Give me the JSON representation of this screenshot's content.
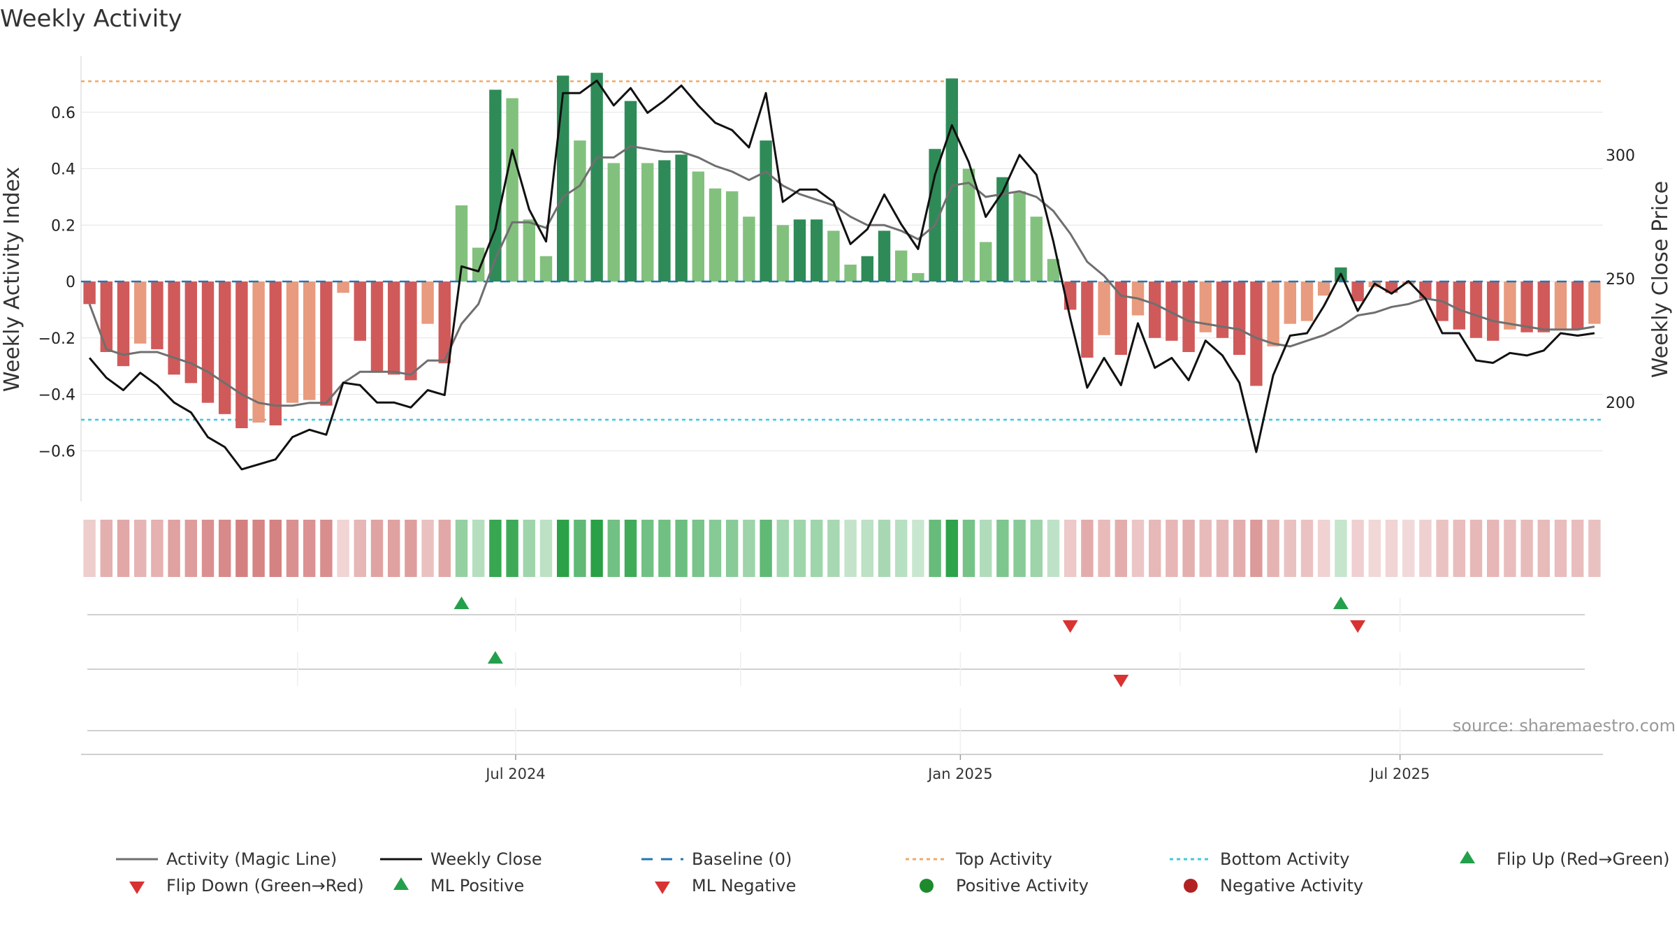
{
  "chart_data": {
    "type": "bar",
    "title": "Weekly Activity",
    "ylabel": "Weekly Activity Index",
    "y2label": "Weekly Close Price",
    "ylim": [
      -0.78,
      0.8
    ],
    "y2lim": [
      160,
      340
    ],
    "yticks": [
      -0.6,
      -0.4,
      -0.2,
      0,
      0.2,
      0.4,
      0.6
    ],
    "ytick_labels": [
      "−0.6",
      "−0.4",
      "−0.2",
      "0",
      "0.2",
      "0.4",
      "0.6"
    ],
    "y2ticks": [
      200,
      250,
      300
    ],
    "y2tick_labels": [
      "200",
      "250",
      "300"
    ],
    "date_ticks": [
      {
        "week": 25.2,
        "label": "Jul 2024"
      },
      {
        "week": 51.5,
        "label": "Jan 2025"
      },
      {
        "week": 77.5,
        "label": "Jul 2025"
      }
    ],
    "minor_date_ticks": [
      12.3,
      38.5,
      64.5
    ],
    "top_activity": 0.71,
    "bottom_activity": -0.49,
    "baseline": 0,
    "activity": [
      -0.08,
      -0.25,
      -0.3,
      -0.22,
      -0.24,
      -0.33,
      -0.36,
      -0.43,
      -0.47,
      -0.52,
      -0.5,
      -0.51,
      -0.43,
      -0.42,
      -0.44,
      -0.04,
      -0.21,
      -0.32,
      -0.33,
      -0.35,
      -0.15,
      -0.29,
      0.27,
      0.12,
      0.68,
      0.65,
      0.22,
      0.09,
      0.73,
      0.5,
      0.74,
      0.42,
      0.64,
      0.42,
      0.43,
      0.45,
      0.39,
      0.33,
      0.32,
      0.23,
      0.5,
      0.2,
      0.22,
      0.22,
      0.18,
      0.06,
      0.09,
      0.18,
      0.11,
      0.03,
      0.47,
      0.72,
      0.4,
      0.14,
      0.37,
      0.32,
      0.23,
      0.08,
      -0.1,
      -0.27,
      -0.19,
      -0.26,
      -0.12,
      -0.2,
      -0.21,
      -0.25,
      -0.18,
      -0.2,
      -0.26,
      -0.37,
      -0.23,
      -0.15,
      -0.14,
      -0.05,
      0.05,
      -0.07,
      -0.02,
      -0.04,
      -0.01,
      -0.06,
      -0.14,
      -0.17,
      -0.2,
      -0.21,
      -0.17,
      -0.18,
      -0.18,
      -0.17,
      -0.17,
      -0.15
    ],
    "magic_line": [
      -0.08,
      -0.24,
      -0.26,
      -0.25,
      -0.25,
      -0.27,
      -0.29,
      -0.32,
      -0.36,
      -0.4,
      -0.43,
      -0.44,
      -0.44,
      -0.43,
      -0.43,
      -0.36,
      -0.32,
      -0.32,
      -0.32,
      -0.33,
      -0.28,
      -0.28,
      -0.15,
      -0.08,
      0.08,
      0.21,
      0.21,
      0.19,
      0.3,
      0.34,
      0.44,
      0.44,
      0.48,
      0.47,
      0.46,
      0.46,
      0.44,
      0.41,
      0.39,
      0.36,
      0.39,
      0.34,
      0.31,
      0.29,
      0.27,
      0.23,
      0.2,
      0.2,
      0.18,
      0.15,
      0.2,
      0.34,
      0.35,
      0.3,
      0.31,
      0.32,
      0.3,
      0.25,
      0.17,
      0.07,
      0.02,
      -0.05,
      -0.06,
      -0.08,
      -0.11,
      -0.14,
      -0.15,
      -0.16,
      -0.17,
      -0.2,
      -0.22,
      -0.23,
      -0.21,
      -0.19,
      -0.16,
      -0.12,
      -0.11,
      -0.09,
      -0.08,
      -0.06,
      -0.07,
      -0.1,
      -0.12,
      -0.14,
      -0.15,
      -0.16,
      -0.17,
      -0.17,
      -0.17,
      -0.16
    ],
    "weekly_close": [
      218,
      210,
      205,
      212,
      207,
      200,
      196,
      186,
      182,
      173,
      175,
      177,
      186,
      189,
      187,
      208,
      207,
      200,
      200,
      198,
      205,
      203,
      255,
      253,
      270,
      302,
      278,
      265,
      325,
      325,
      330,
      320,
      327,
      317,
      322,
      328,
      320,
      313,
      310,
      303,
      325,
      281,
      286,
      286,
      281,
      264,
      270,
      284,
      272,
      262,
      292,
      312,
      297,
      275,
      285,
      300,
      292,
      265,
      234,
      206,
      218,
      207,
      232,
      214,
      218,
      209,
      225,
      219,
      208,
      180,
      211,
      227,
      228,
      239,
      252,
      237,
      248,
      244,
      249,
      242,
      228,
      228,
      217,
      216,
      220,
      219,
      221,
      228,
      227,
      228
    ],
    "legend": [
      {
        "key": "magic_line",
        "label": "Activity (Magic Line)",
        "color": "#6f6f6f"
      },
      {
        "key": "weekly_close",
        "label": "Weekly Close",
        "color": "#111111"
      },
      {
        "key": "baseline",
        "label": "Baseline (0)",
        "color": "#1f77b4"
      },
      {
        "key": "top_activity",
        "label": "Top Activity",
        "color": "#f0a868"
      },
      {
        "key": "bottom_activity",
        "label": "Bottom Activity",
        "color": "#3ec8e0"
      },
      {
        "key": "flip_up",
        "label": "Flip Up (Red→Green)",
        "color": "#23a04b"
      },
      {
        "key": "flip_down",
        "label": "Flip Down (Green→Red)",
        "color": "#d93232"
      },
      {
        "key": "ml_positive",
        "label": "ML Positive",
        "color": "#23a04b"
      },
      {
        "key": "ml_negative",
        "label": "ML Negative",
        "color": "#d93232"
      },
      {
        "key": "positive_activity",
        "label": "Positive Activity",
        "color": "#1e8a2e"
      },
      {
        "key": "negative_activity",
        "label": "Negative Activity",
        "color": "#b22222"
      }
    ],
    "flip_events": [
      {
        "week": 22,
        "direction": "up"
      },
      {
        "week": 58,
        "direction": "down"
      },
      {
        "week": 74,
        "direction": "up"
      },
      {
        "week": 75,
        "direction": "down"
      }
    ],
    "ml_events": [
      {
        "week": 24,
        "direction": "up"
      },
      {
        "week": 61,
        "direction": "down"
      }
    ],
    "colors": {
      "pos_strong": "#2e8b57",
      "pos_weak": "#82c17d",
      "neg_strong": "#d05a5a",
      "neg_weak": "#e89b7e",
      "heat_pos": "#2aa146",
      "heat_neg": "#c85a5a",
      "grid": "#e4e4e4"
    }
  },
  "source": "source: sharemaestro.com"
}
